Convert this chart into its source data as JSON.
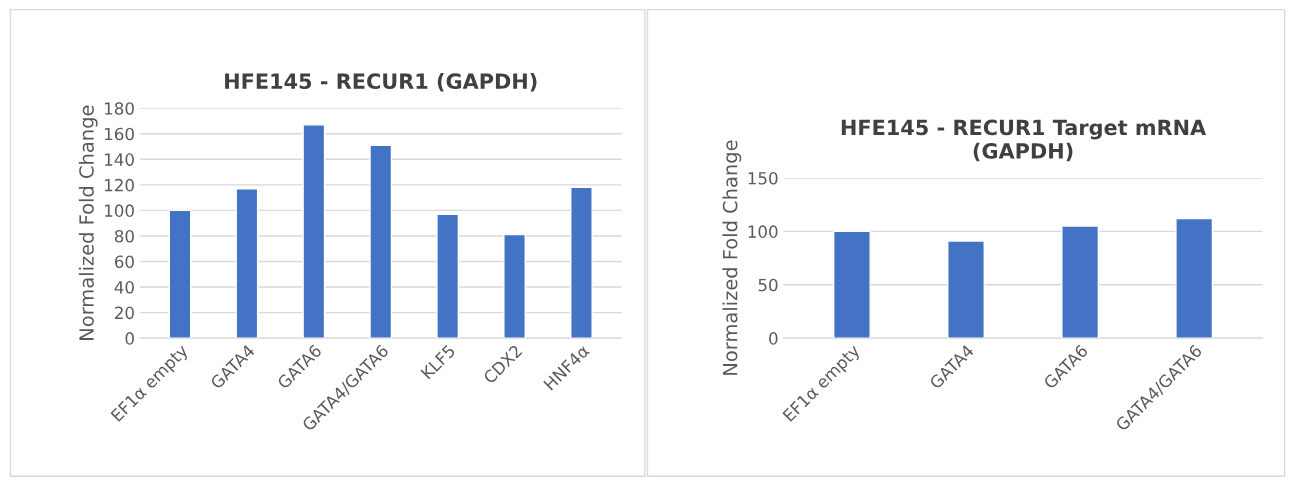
{
  "chart_data": [
    {
      "type": "bar",
      "title": "HFE145 - RECUR1 (GAPDH)",
      "ylabel": "Normalized Fold Change",
      "categories": [
        "EF1α empty",
        "GATA4",
        "GATA6",
        "GATA4/GATA6",
        "KLF5",
        "CDX2",
        "HNF4α"
      ],
      "series": [
        {
          "color": "#4472c4",
          "values": [
            100,
            117,
            167,
            151,
            97,
            81,
            118
          ]
        }
      ],
      "ylim": [
        0,
        180
      ],
      "yticks": [
        0,
        20,
        40,
        60,
        80,
        100,
        120,
        140,
        160,
        180
      ],
      "grid": "y",
      "legend": false
    },
    {
      "type": "bar",
      "title": "HFE145 - RECUR1 Target mRNA\n(GAPDH)",
      "ylabel": "Normalized Fold Change",
      "categories": [
        "EF1α empty",
        "GATA4",
        "GATA6",
        "GATA4/GATA6"
      ],
      "series": [
        {
          "color": "#4472c4",
          "values": [
            100,
            91,
            105,
            112
          ]
        }
      ],
      "ylim": [
        0,
        150
      ],
      "yticks": [
        0,
        50,
        100,
        150
      ],
      "grid": "y",
      "legend": false
    }
  ]
}
